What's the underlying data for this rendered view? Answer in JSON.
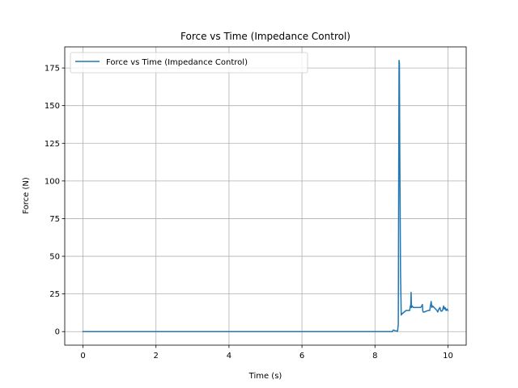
{
  "chart_data": {
    "type": "line",
    "title": "Force vs Time (Impedance Control)",
    "xlabel": "Time (s)",
    "ylabel": "Force (N)",
    "xlim": [
      -0.5,
      10.5
    ],
    "ylim": [
      -9,
      189
    ],
    "grid": true,
    "legend_position": "upper-left",
    "x_ticks": [
      0,
      2,
      4,
      6,
      8,
      10
    ],
    "x_tick_labels": [
      "0",
      "2",
      "4",
      "6",
      "8",
      "10"
    ],
    "y_ticks": [
      0,
      25,
      50,
      75,
      100,
      125,
      150,
      175
    ],
    "y_tick_labels": [
      "0",
      "25",
      "50",
      "75",
      "100",
      "125",
      "150",
      "175"
    ],
    "series": [
      {
        "name": "Force vs Time (Impedance Control)",
        "color": "#1f77b4",
        "x": [
          0,
          8.0,
          8.48,
          8.5,
          8.52,
          8.55,
          8.58,
          8.62,
          8.64,
          8.65,
          8.66,
          8.67,
          8.68,
          8.7,
          8.72,
          8.75,
          8.8,
          8.85,
          8.9,
          8.95,
          8.97,
          8.98,
          8.99,
          9.0,
          9.02,
          9.05,
          9.1,
          9.15,
          9.2,
          9.25,
          9.28,
          9.3,
          9.31,
          9.32,
          9.35,
          9.4,
          9.45,
          9.5,
          9.52,
          9.54,
          9.56,
          9.58,
          9.62,
          9.66,
          9.7,
          9.72,
          9.75,
          9.78,
          9.8,
          9.82,
          9.85,
          9.88,
          9.9,
          9.92,
          9.95,
          9.97,
          10.0
        ],
        "y": [
          0,
          0,
          0,
          1.0,
          1.0,
          0.5,
          0.5,
          0.2,
          5,
          100,
          180,
          178,
          120,
          40,
          11,
          12,
          13,
          14,
          14,
          14,
          17,
          16,
          26,
          16,
          17,
          16,
          16,
          16,
          16,
          16,
          17,
          18,
          14,
          13,
          13,
          13.5,
          14,
          14,
          17,
          20,
          16,
          17,
          16,
          15,
          14,
          13,
          15,
          16,
          14,
          13.5,
          14,
          17,
          15,
          16,
          14,
          15,
          14
        ]
      }
    ]
  }
}
